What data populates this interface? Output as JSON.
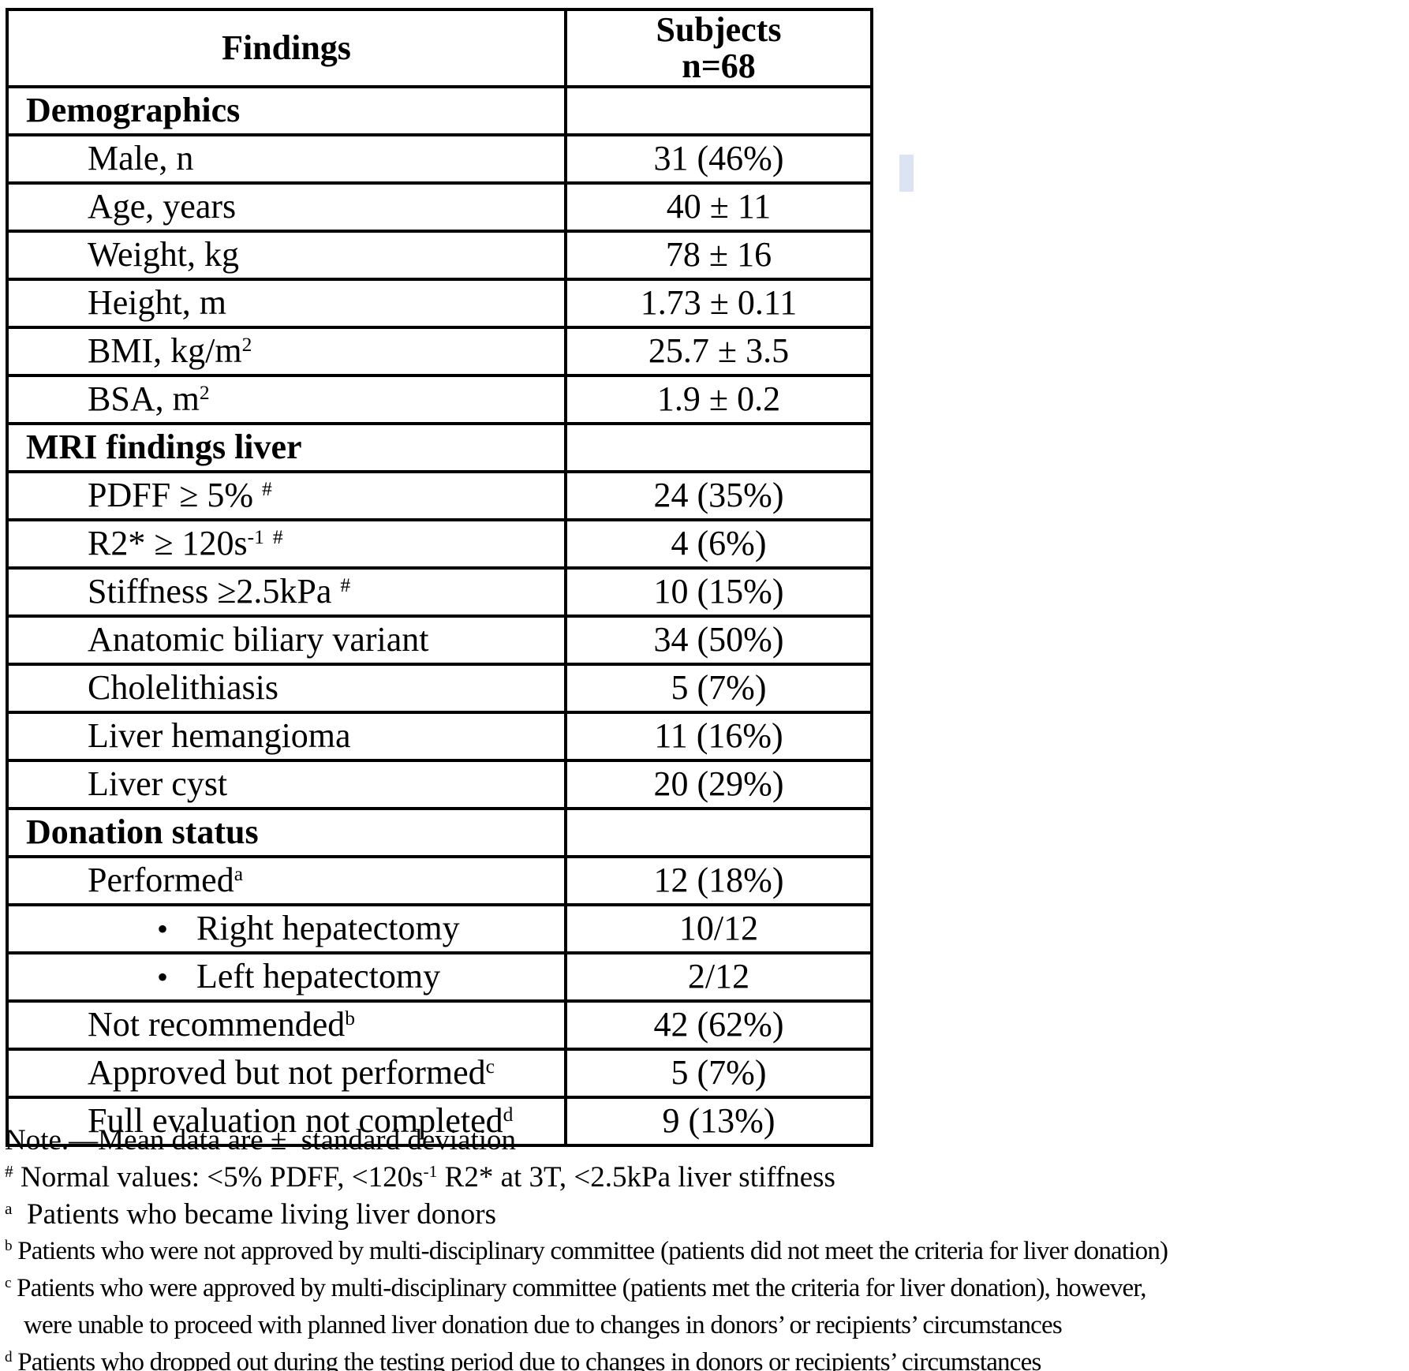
{
  "table": {
    "columns": [
      {
        "label": "Findings"
      },
      {
        "label": "Subjects",
        "sublabel": "n=68"
      }
    ],
    "rows": [
      {
        "type": "section",
        "segments": [
          {
            "t": "Demographics"
          }
        ],
        "value": ""
      },
      {
        "type": "item",
        "segments": [
          {
            "t": "Male, n"
          }
        ],
        "value": "31 (46%)"
      },
      {
        "type": "item",
        "segments": [
          {
            "t": "Age, years"
          }
        ],
        "value": "40 ± 11"
      },
      {
        "type": "item",
        "segments": [
          {
            "t": "Weight, kg"
          }
        ],
        "value": "78 ± 16"
      },
      {
        "type": "item",
        "segments": [
          {
            "t": "Height, m"
          }
        ],
        "value": "1.73 ± 0.11"
      },
      {
        "type": "item",
        "segments": [
          {
            "t": "BMI, kg/m"
          },
          {
            "t": "2",
            "sup": true
          }
        ],
        "value": "25.7 ± 3.5"
      },
      {
        "type": "item",
        "segments": [
          {
            "t": "BSA, m"
          },
          {
            "t": "2",
            "sup": true
          }
        ],
        "value": "1.9 ± 0.2"
      },
      {
        "type": "section",
        "segments": [
          {
            "t": "MRI findings liver"
          }
        ],
        "value": ""
      },
      {
        "type": "item",
        "segments": [
          {
            "t": "PDFF ≥ 5% "
          },
          {
            "t": "#",
            "sup": true
          }
        ],
        "value": "24 (35%)"
      },
      {
        "type": "item",
        "segments": [
          {
            "t": "R2* ≥ 120s"
          },
          {
            "t": "-1",
            "sup": true
          },
          {
            "t": " "
          },
          {
            "t": "#",
            "sup": true
          }
        ],
        "value": "4 (6%)"
      },
      {
        "type": "item",
        "segments": [
          {
            "t": "Stiffness ≥2.5kPa "
          },
          {
            "t": "#",
            "sup": true
          }
        ],
        "value": "10 (15%)"
      },
      {
        "type": "item",
        "segments": [
          {
            "t": "Anatomic biliary variant"
          }
        ],
        "value": "34 (50%)"
      },
      {
        "type": "item",
        "segments": [
          {
            "t": "Cholelithiasis"
          }
        ],
        "value": "5 (7%)"
      },
      {
        "type": "item",
        "segments": [
          {
            "t": "Liver hemangioma"
          }
        ],
        "value": "11 (16%)"
      },
      {
        "type": "item",
        "segments": [
          {
            "t": "Liver cyst"
          }
        ],
        "value": "20 (29%)"
      },
      {
        "type": "section",
        "segments": [
          {
            "t": "Donation status"
          }
        ],
        "value": ""
      },
      {
        "type": "item",
        "segments": [
          {
            "t": "Performed"
          },
          {
            "t": "a",
            "sup": true
          }
        ],
        "value": "12 (18%)"
      },
      {
        "type": "bullet",
        "segments": [
          {
            "t": "Right hepatectomy"
          }
        ],
        "value": "10/12"
      },
      {
        "type": "bullet",
        "segments": [
          {
            "t": "Left hepatectomy"
          }
        ],
        "value": "2/12"
      },
      {
        "type": "item",
        "segments": [
          {
            "t": "Not recommended"
          },
          {
            "t": "b",
            "sup": true
          }
        ],
        "value": "42 (62%)"
      },
      {
        "type": "item",
        "segments": [
          {
            "t": "Approved but not performed"
          },
          {
            "t": "c",
            "sup": true
          }
        ],
        "value": "5 (7%)"
      },
      {
        "type": "item",
        "segments": [
          {
            "t": "Full evaluation not completed"
          },
          {
            "t": "d",
            "sup": true
          }
        ],
        "value": "9 (13%)"
      }
    ]
  },
  "notes": [
    {
      "segments": [
        {
          "t": "Note.—Mean data are ±  standard deviation"
        }
      ]
    },
    {
      "segments": [
        {
          "t": "#",
          "sup": true
        },
        {
          "t": " Normal values: <5% PDFF, <120s"
        },
        {
          "t": "-1",
          "sup": true
        },
        {
          "t": " R2* at 3T, <2.5kPa liver stiffness"
        }
      ]
    },
    {
      "segments": [
        {
          "t": "a",
          "sup": true
        },
        {
          "t": "  Patients who became living liver donors"
        }
      ]
    },
    {
      "segments": [
        {
          "t": "b",
          "sup": true
        },
        {
          "t": " Patients who were not approved by multi-disciplinary committee (patients did not meet the criteria for liver donation)"
        }
      ],
      "condensed": true
    },
    {
      "segments": [
        {
          "t": "c",
          "sup": true
        },
        {
          "t": " Patients who were approved by multi-disciplinary committee (patients met the criteria for liver donation), however,"
        }
      ],
      "condensed": true
    },
    {
      "segments": [
        {
          "t": "were unable to proceed with planned liver donation due to changes in donors’ or recipients’ circumstances"
        }
      ],
      "condensed": true,
      "indent": true
    },
    {
      "segments": [
        {
          "t": "d",
          "sup": true
        },
        {
          "t": " Patients who dropped out during the testing period due to changes in donors or recipients’ circumstances"
        }
      ],
      "condensed": true
    }
  ],
  "artifact": {
    "color": "#dce3f2"
  }
}
